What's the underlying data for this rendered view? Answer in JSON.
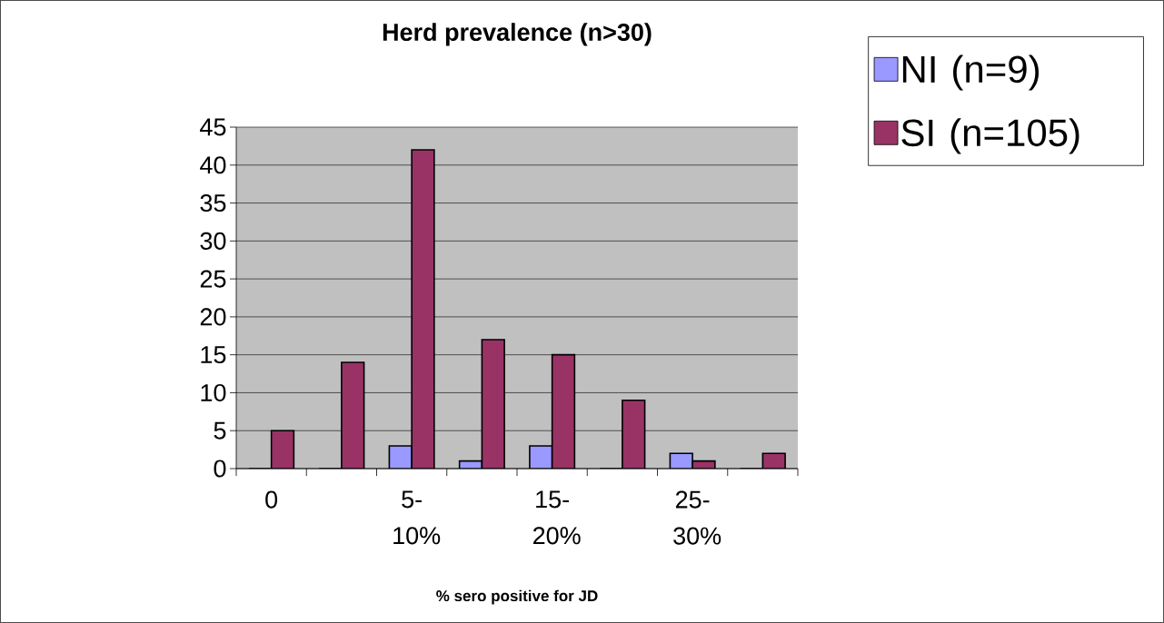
{
  "chart_data": {
    "type": "bar",
    "title": "Herd prevalence (n>30)",
    "xlabel": "% sero positive for JD",
    "categories": [
      "0",
      null,
      "5-10%",
      null,
      "15-20%",
      null,
      "25-30%",
      null
    ],
    "series": [
      {
        "name": "NI (n=9)",
        "color": "#9999ff",
        "values": [
          0,
          0,
          3,
          1,
          3,
          0,
          2,
          0
        ]
      },
      {
        "name": "SI (n=105)",
        "color": "#993366",
        "values": [
          5,
          14,
          42,
          17,
          15,
          9,
          1,
          2
        ]
      }
    ],
    "ylim": [
      0,
      45
    ],
    "yticks": [
      0,
      5,
      10,
      15,
      20,
      25,
      30,
      35,
      40,
      45
    ],
    "grid": "y",
    "legend": "right"
  }
}
